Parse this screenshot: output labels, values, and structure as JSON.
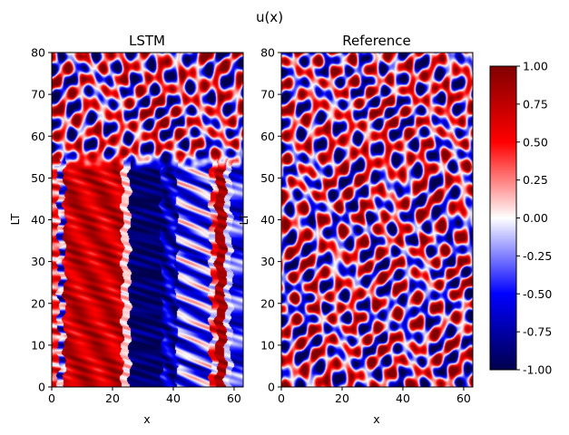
{
  "chart_data": [
    {
      "type": "heatmap",
      "title": "LSTM",
      "xlabel": "x",
      "ylabel": "LT",
      "xlim": [
        0,
        63
      ],
      "ylim": [
        0,
        80
      ],
      "xticks": [
        "0",
        "20",
        "40",
        "60"
      ],
      "yticks": [
        "0",
        "10",
        "20",
        "30",
        "40",
        "50",
        "60",
        "70",
        "80"
      ],
      "description": "u(x) field: vertical red/blue stripes (red at x≈0-22, deep blue x≈25-40, mixed x≈40-55, red x≈55-58) for LT 0-54, turning into diagonal chaotic waves above LT≈54",
      "regime_change_lt": 54
    },
    {
      "type": "heatmap",
      "title": "Reference",
      "xlabel": "x",
      "ylabel": "LT",
      "xlim": [
        0,
        63
      ],
      "ylim": [
        0,
        80
      ],
      "xticks": [
        "0",
        "20",
        "40",
        "60"
      ],
      "yticks": [
        "0",
        "10",
        "20",
        "30",
        "40",
        "50",
        "60",
        "70",
        "80"
      ],
      "description": "u(x) field: chaotic diagonal red/blue travelling waves over the full LT range"
    }
  ],
  "figure": {
    "suptitle": "u(x)",
    "colorbar": {
      "colormap": "seismic",
      "vmin": -1.0,
      "vmax": 1.0,
      "ticks": [
        "-1.00",
        "-0.75",
        "-0.50",
        "-0.25",
        "0.00",
        "0.25",
        "0.50",
        "0.75",
        "1.00"
      ]
    }
  }
}
